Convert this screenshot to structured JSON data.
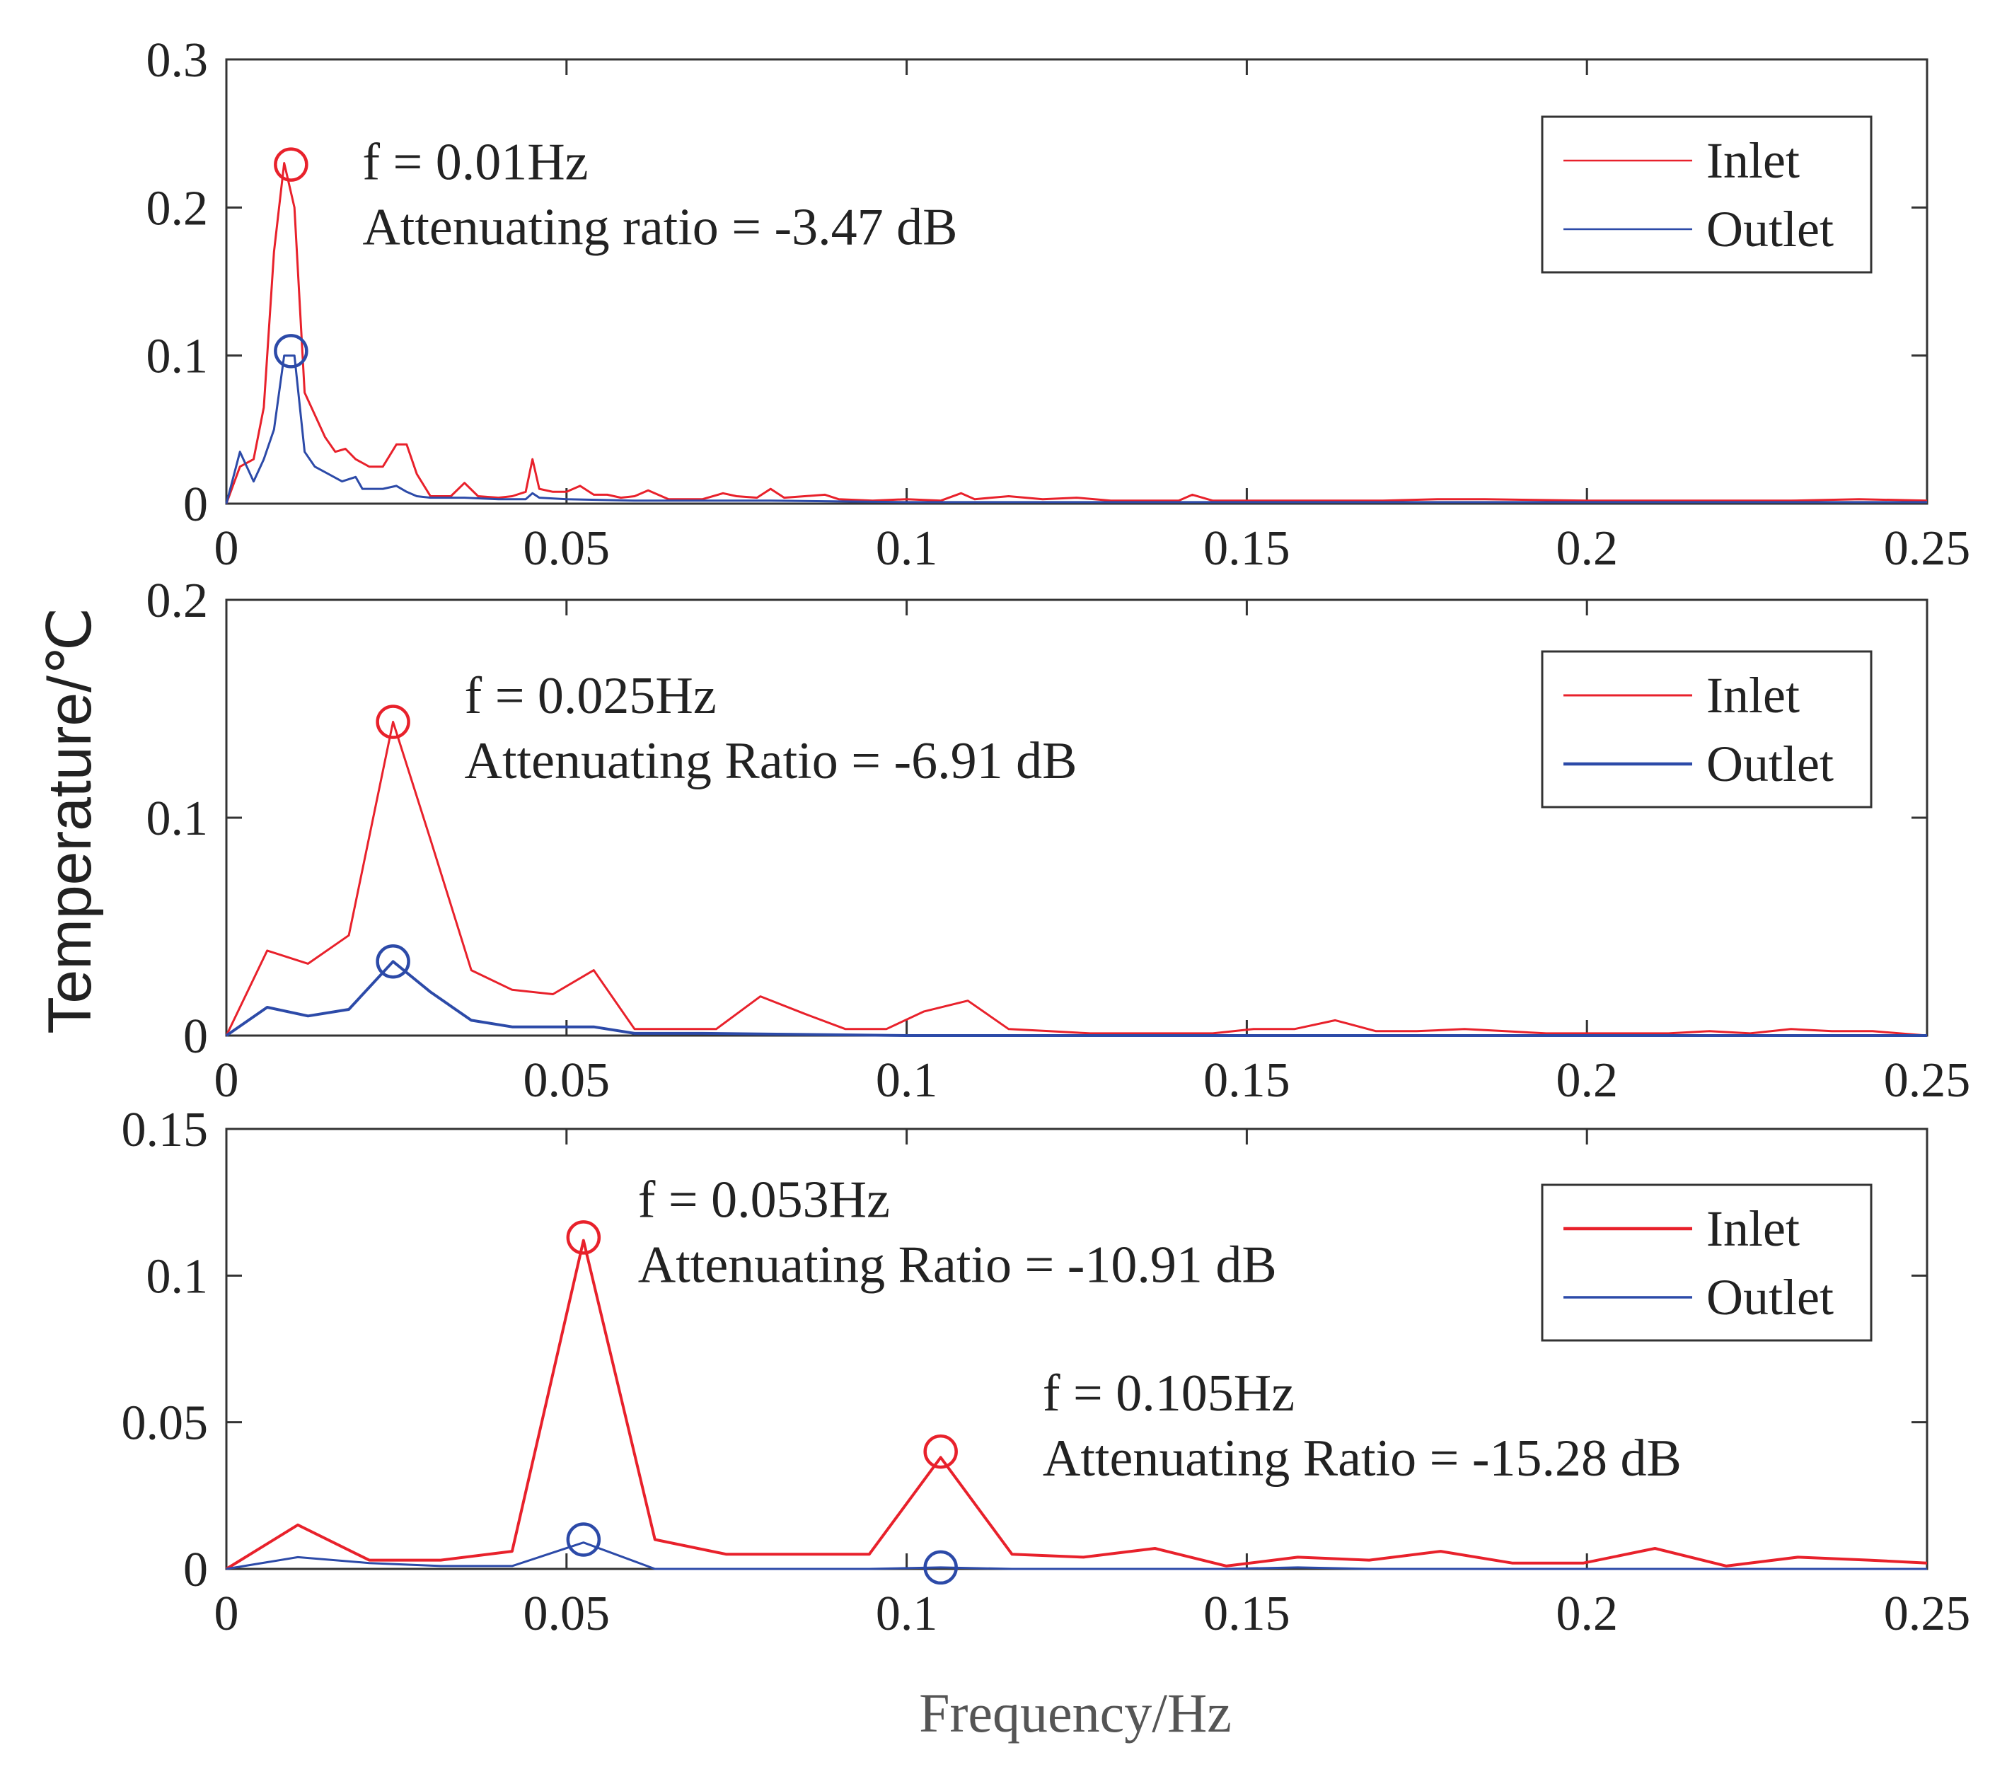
{
  "figure": {
    "ylabel": "Temperature/℃",
    "xlabel": "Frequency/Hz"
  },
  "colors": {
    "inlet": "#e8212b",
    "outlet": "#2c4aa8",
    "axis": "#333333"
  },
  "chart_data": [
    {
      "type": "line",
      "title": "",
      "xlim": [
        0,
        0.25
      ],
      "ylim": [
        0,
        0.3
      ],
      "xticks": [
        0,
        0.05,
        0.1,
        0.15,
        0.2,
        0.25
      ],
      "xtick_labels": [
        "0",
        "0.05",
        "0.1",
        "0.15",
        "0.2",
        "0.25"
      ],
      "yticks": [
        0,
        0.1,
        0.2,
        0.3
      ],
      "ytick_labels": [
        "0",
        "0.1",
        "0.2",
        "0.3"
      ],
      "legend": [
        "Inlet",
        "Outlet"
      ],
      "legend_position": "top-right",
      "series": [
        {
          "name": "Inlet",
          "x": [
            0,
            0.002,
            0.004,
            0.0055,
            0.007,
            0.0085,
            0.01,
            0.0115,
            0.013,
            0.0145,
            0.016,
            0.0175,
            0.019,
            0.021,
            0.023,
            0.025,
            0.0265,
            0.028,
            0.03,
            0.033,
            0.035,
            0.037,
            0.04,
            0.042,
            0.044,
            0.045,
            0.046,
            0.048,
            0.05,
            0.052,
            0.054,
            0.056,
            0.058,
            0.06,
            0.062,
            0.065,
            0.07,
            0.073,
            0.075,
            0.078,
            0.08,
            0.082,
            0.085,
            0.088,
            0.09,
            0.095,
            0.1,
            0.105,
            0.108,
            0.11,
            0.115,
            0.12,
            0.125,
            0.13,
            0.135,
            0.14,
            0.142,
            0.145,
            0.15,
            0.16,
            0.17,
            0.178,
            0.185,
            0.2,
            0.215,
            0.23,
            0.24,
            0.25
          ],
          "values": [
            0,
            0.025,
            0.03,
            0.065,
            0.17,
            0.23,
            0.2,
            0.075,
            0.06,
            0.045,
            0.035,
            0.037,
            0.03,
            0.025,
            0.025,
            0.04,
            0.04,
            0.02,
            0.005,
            0.005,
            0.014,
            0.005,
            0.004,
            0.005,
            0.008,
            0.03,
            0.01,
            0.008,
            0.008,
            0.012,
            0.006,
            0.006,
            0.004,
            0.005,
            0.009,
            0.003,
            0.003,
            0.007,
            0.005,
            0.004,
            0.01,
            0.004,
            0.005,
            0.006,
            0.003,
            0.002,
            0.003,
            0.002,
            0.007,
            0.003,
            0.005,
            0.003,
            0.004,
            0.002,
            0.002,
            0.002,
            0.006,
            0.002,
            0.002,
            0.002,
            0.002,
            0.003,
            0.003,
            0.002,
            0.002,
            0.002,
            0.003,
            0.002
          ]
        },
        {
          "name": "Outlet",
          "x": [
            0,
            0.002,
            0.004,
            0.0055,
            0.007,
            0.0085,
            0.01,
            0.0115,
            0.013,
            0.015,
            0.017,
            0.019,
            0.02,
            0.023,
            0.025,
            0.0265,
            0.028,
            0.03,
            0.035,
            0.04,
            0.044,
            0.045,
            0.046,
            0.05,
            0.06,
            0.07,
            0.08,
            0.1,
            0.15,
            0.2,
            0.25
          ],
          "values": [
            0,
            0.035,
            0.015,
            0.03,
            0.05,
            0.1,
            0.1,
            0.035,
            0.025,
            0.02,
            0.015,
            0.018,
            0.01,
            0.01,
            0.012,
            0.008,
            0.005,
            0.004,
            0.004,
            0.003,
            0.003,
            0.007,
            0.004,
            0.003,
            0.002,
            0.002,
            0.002,
            0.001,
            0.001,
            0.001,
            0.001
          ]
        }
      ],
      "markers": [
        {
          "series": "Inlet",
          "x": 0.0095,
          "y": 0.229
        },
        {
          "series": "Outlet",
          "x": 0.0095,
          "y": 0.103
        }
      ],
      "annotations": [
        {
          "x": 0.02,
          "y": 0.219,
          "lines": [
            "f = 0.01Hz",
            "Attenuating ratio = -3.47 dB"
          ]
        }
      ]
    },
    {
      "type": "line",
      "title": "",
      "xlim": [
        0,
        0.25
      ],
      "ylim": [
        0,
        0.2
      ],
      "xticks": [
        0,
        0.05,
        0.1,
        0.15,
        0.2,
        0.25
      ],
      "xtick_labels": [
        "0",
        "0.05",
        "0.1",
        "0.15",
        "0.2",
        "0.25"
      ],
      "yticks": [
        0,
        0.1,
        0.2
      ],
      "ytick_labels": [
        "0",
        "0.1",
        "0.2"
      ],
      "legend": [
        "Inlet",
        "Outlet"
      ],
      "legend_position": "top-right",
      "series": [
        {
          "name": "Inlet",
          "x": [
            0,
            0.006,
            0.012,
            0.018,
            0.0245,
            0.03,
            0.036,
            0.042,
            0.048,
            0.054,
            0.06,
            0.066,
            0.072,
            0.0785,
            0.085,
            0.091,
            0.097,
            0.1025,
            0.109,
            0.115,
            0.121,
            0.127,
            0.133,
            0.139,
            0.145,
            0.151,
            0.157,
            0.163,
            0.169,
            0.175,
            0.182,
            0.188,
            0.194,
            0.2,
            0.206,
            0.212,
            0.218,
            0.224,
            0.23,
            0.236,
            0.242,
            0.25
          ],
          "values": [
            0,
            0.039,
            0.033,
            0.046,
            0.144,
            0.09,
            0.03,
            0.021,
            0.019,
            0.03,
            0.003,
            0.003,
            0.003,
            0.018,
            0.01,
            0.003,
            0.003,
            0.011,
            0.016,
            0.003,
            0.002,
            0.001,
            0.001,
            0.001,
            0.001,
            0.003,
            0.003,
            0.007,
            0.002,
            0.002,
            0.003,
            0.002,
            0.001,
            0.001,
            0.001,
            0.001,
            0.002,
            0.001,
            0.003,
            0.002,
            0.002,
            0.0
          ]
        },
        {
          "name": "Outlet",
          "x": [
            0,
            0.006,
            0.012,
            0.018,
            0.0245,
            0.03,
            0.036,
            0.042,
            0.048,
            0.054,
            0.06,
            0.07,
            0.1,
            0.15,
            0.2,
            0.25
          ],
          "values": [
            0,
            0.013,
            0.009,
            0.012,
            0.034,
            0.02,
            0.007,
            0.004,
            0.004,
            0.004,
            0.001,
            0.001,
            0.0,
            0.0,
            0.0,
            0.0
          ]
        }
      ],
      "markers": [
        {
          "series": "Inlet",
          "x": 0.0245,
          "y": 0.144
        },
        {
          "series": "Outlet",
          "x": 0.0245,
          "y": 0.034
        }
      ],
      "annotations": [
        {
          "x": 0.035,
          "y": 0.148,
          "lines": [
            "f = 0.025Hz",
            "Attenuating Ratio = -6.91 dB"
          ]
        }
      ]
    },
    {
      "type": "line",
      "title": "",
      "xlim": [
        0,
        0.25
      ],
      "ylim": [
        0,
        0.15
      ],
      "xticks": [
        0,
        0.05,
        0.1,
        0.15,
        0.2,
        0.25
      ],
      "xtick_labels": [
        "0",
        "0.05",
        "0.1",
        "0.15",
        "0.2",
        "0.25"
      ],
      "yticks": [
        0,
        0.05,
        0.1,
        0.15
      ],
      "ytick_labels": [
        "0",
        "0.05",
        "0.1",
        "0.15"
      ],
      "legend": [
        "Inlet",
        "Outlet"
      ],
      "legend_position": "top-right",
      "series": [
        {
          "name": "Inlet",
          "x": [
            0,
            0.0105,
            0.021,
            0.0315,
            0.042,
            0.0525,
            0.063,
            0.0735,
            0.084,
            0.0945,
            0.105,
            0.1155,
            0.126,
            0.1365,
            0.147,
            0.1575,
            0.168,
            0.1785,
            0.189,
            0.1995,
            0.21,
            0.2205,
            0.231,
            0.2415,
            0.25
          ],
          "values": [
            0,
            0.015,
            0.003,
            0.003,
            0.006,
            0.112,
            0.01,
            0.005,
            0.005,
            0.005,
            0.038,
            0.005,
            0.004,
            0.007,
            0.001,
            0.004,
            0.003,
            0.006,
            0.002,
            0.002,
            0.007,
            0.001,
            0.004,
            0.003,
            0.002
          ]
        },
        {
          "name": "Outlet",
          "x": [
            0,
            0.0105,
            0.021,
            0.0315,
            0.042,
            0.0525,
            0.063,
            0.0735,
            0.084,
            0.0945,
            0.105,
            0.1155,
            0.126,
            0.1365,
            0.147,
            0.1575,
            0.168,
            0.1785,
            0.189,
            0.1995,
            0.21,
            0.2205,
            0.231,
            0.2415,
            0.25
          ],
          "values": [
            0,
            0.004,
            0.002,
            0.001,
            0.001,
            0.009,
            0.0,
            0.0,
            0.0,
            0.0,
            0.0005,
            0.0,
            0.0,
            0.0,
            0.0,
            0.0005,
            0.0,
            0.0,
            0.0,
            0.0,
            0.0,
            0.0,
            0.0,
            0.0,
            0.0
          ]
        }
      ],
      "markers": [
        {
          "series": "Inlet",
          "x": 0.0525,
          "y": 0.113
        },
        {
          "series": "Outlet",
          "x": 0.0525,
          "y": 0.01
        },
        {
          "series": "Inlet",
          "x": 0.105,
          "y": 0.04
        },
        {
          "series": "Outlet",
          "x": 0.105,
          "y": 0.0005
        }
      ],
      "annotations": [
        {
          "x": 0.0605,
          "y": 0.12,
          "lines": [
            "f = 0.053Hz",
            "Attenuating Ratio = -10.91 dB"
          ]
        },
        {
          "x": 0.12,
          "y": 0.054,
          "lines": [
            "f = 0.105Hz",
            "Attenuating Ratio = -15.28 dB"
          ]
        }
      ]
    }
  ]
}
